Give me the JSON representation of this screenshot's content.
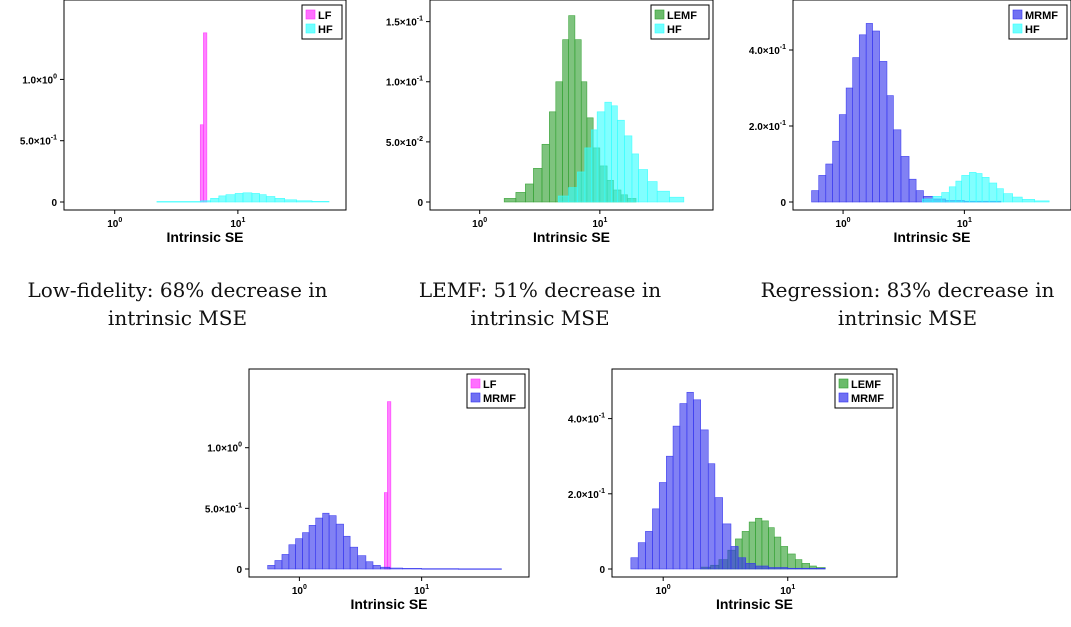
{
  "colors": {
    "LF": "#ff33ff",
    "HF": "#33ffff",
    "LEMF": "#2e9e2e",
    "MRMF": "#3333ee"
  },
  "captions": [
    "Low-fidelity: 68% decrease in intrinsic MSE",
    "LEMF: 51% decrease in intrinsic MSE",
    "Regression: 83% decrease in intrinsic MSE"
  ],
  "chart_data": [
    {
      "type": "histogram",
      "xlabel": "Intrinsic SE",
      "x_scale": "log",
      "xlim": [
        0.45,
        65
      ],
      "x_ticks": [
        {
          "value": 1,
          "base": "10",
          "exp": "0"
        },
        {
          "value": 10,
          "base": "10",
          "exp": "1"
        }
      ],
      "ylim": [
        0,
        1.55
      ],
      "y_ticks": [
        {
          "value": 0,
          "label": "0",
          "exp": ""
        },
        {
          "value": 0.5,
          "label": "5.0×10",
          "exp": "-1"
        },
        {
          "value": 1.0,
          "label": "1.0×10",
          "exp": "0"
        }
      ],
      "legend": "top-right",
      "series": [
        {
          "name": "LF",
          "bins": [
            [
              4.95,
              5.25,
              0.63
            ],
            [
              5.25,
              5.6,
              1.38
            ]
          ]
        },
        {
          "name": "HF",
          "bins": [
            [
              2.2,
              5.0,
              0.004
            ],
            [
              5.0,
              6.0,
              0.01
            ],
            [
              6.0,
              7.0,
              0.03
            ],
            [
              7.0,
              8.0,
              0.05
            ],
            [
              8.0,
              9.5,
              0.06
            ],
            [
              9.5,
              11,
              0.07
            ],
            [
              11,
              13,
              0.075
            ],
            [
              13,
              15,
              0.07
            ],
            [
              15,
              17,
              0.06
            ],
            [
              17,
              20,
              0.045
            ],
            [
              20,
              24,
              0.03
            ],
            [
              24,
              30,
              0.018
            ],
            [
              30,
              40,
              0.01
            ],
            [
              40,
              55,
              0.005
            ]
          ]
        }
      ]
    },
    {
      "type": "histogram",
      "xlabel": "Intrinsic SE",
      "x_scale": "log",
      "xlim": [
        0.45,
        75
      ],
      "x_ticks": [
        {
          "value": 1,
          "base": "10",
          "exp": "0"
        },
        {
          "value": 10,
          "base": "10",
          "exp": "1"
        }
      ],
      "ylim": [
        0,
        0.158
      ],
      "y_ticks": [
        {
          "value": 0,
          "label": "0",
          "exp": ""
        },
        {
          "value": 0.05,
          "label": "5.0×10",
          "exp": "-2"
        },
        {
          "value": 0.1,
          "label": "1.0×10",
          "exp": "-1"
        },
        {
          "value": 0.15,
          "label": "1.5×10",
          "exp": "-1"
        }
      ],
      "legend": "top-right",
      "series": [
        {
          "name": "LEMF",
          "bins": [
            [
              1.6,
              2.0,
              0.003
            ],
            [
              2.0,
              2.4,
              0.008
            ],
            [
              2.4,
              2.8,
              0.015
            ],
            [
              2.8,
              3.3,
              0.028
            ],
            [
              3.3,
              3.8,
              0.048
            ],
            [
              3.8,
              4.3,
              0.075
            ],
            [
              4.3,
              4.9,
              0.1
            ],
            [
              4.9,
              5.5,
              0.135
            ],
            [
              5.5,
              6.2,
              0.155
            ],
            [
              6.2,
              7.0,
              0.135
            ],
            [
              7.0,
              7.8,
              0.1
            ],
            [
              7.8,
              8.8,
              0.07
            ],
            [
              8.8,
              10,
              0.045
            ],
            [
              10,
              11.5,
              0.03
            ],
            [
              11.5,
              13,
              0.018
            ],
            [
              13,
              15,
              0.01
            ],
            [
              15,
              17,
              0.006
            ],
            [
              17,
              20,
              0.003
            ]
          ]
        },
        {
          "name": "HF",
          "bins": [
            [
              4.5,
              5.5,
              0.005
            ],
            [
              5.5,
              6.5,
              0.012
            ],
            [
              6.5,
              7.5,
              0.025
            ],
            [
              7.5,
              8.5,
              0.045
            ],
            [
              8.5,
              9.5,
              0.06
            ],
            [
              9.5,
              11,
              0.075
            ],
            [
              11,
              12.5,
              0.083
            ],
            [
              12.5,
              14,
              0.08
            ],
            [
              14,
              16,
              0.068
            ],
            [
              16,
              18.5,
              0.055
            ],
            [
              18.5,
              21,
              0.04
            ],
            [
              21,
              25,
              0.027
            ],
            [
              25,
              30,
              0.017
            ],
            [
              30,
              38,
              0.009
            ],
            [
              38,
              50,
              0.004
            ]
          ]
        }
      ]
    },
    {
      "type": "histogram",
      "xlabel": "Intrinsic SE",
      "x_scale": "log",
      "xlim": [
        0.45,
        65
      ],
      "x_ticks": [
        {
          "value": 1,
          "base": "10",
          "exp": "0"
        },
        {
          "value": 10,
          "base": "10",
          "exp": "1"
        }
      ],
      "ylim": [
        0,
        0.5
      ],
      "y_ticks": [
        {
          "value": 0,
          "label": "0",
          "exp": ""
        },
        {
          "value": 0.2,
          "label": "2.0×10",
          "exp": "-1"
        },
        {
          "value": 0.4,
          "label": "4.0×10",
          "exp": "-1"
        }
      ],
      "legend": "top-right",
      "series": [
        {
          "name": "MRMF",
          "bins": [
            [
              0.55,
              0.63,
              0.03
            ],
            [
              0.63,
              0.72,
              0.07
            ],
            [
              0.72,
              0.82,
              0.1
            ],
            [
              0.82,
              0.93,
              0.16
            ],
            [
              0.93,
              1.06,
              0.23
            ],
            [
              1.06,
              1.2,
              0.3
            ],
            [
              1.2,
              1.36,
              0.38
            ],
            [
              1.36,
              1.55,
              0.44
            ],
            [
              1.55,
              1.75,
              0.47
            ],
            [
              1.75,
              2.0,
              0.45
            ],
            [
              2.0,
              2.3,
              0.37
            ],
            [
              2.3,
              2.6,
              0.28
            ],
            [
              2.6,
              3.0,
              0.19
            ],
            [
              3.0,
              3.5,
              0.12
            ],
            [
              3.5,
              4.0,
              0.06
            ],
            [
              4.0,
              4.6,
              0.03
            ],
            [
              4.6,
              5.5,
              0.015
            ],
            [
              5.5,
              7,
              0.008
            ],
            [
              7,
              10,
              0.004
            ],
            [
              10,
              20,
              0.002
            ]
          ]
        },
        {
          "name": "HF",
          "bins": [
            [
              4.5,
              5.5,
              0.008
            ],
            [
              5.5,
              6.5,
              0.015
            ],
            [
              6.5,
              7.5,
              0.025
            ],
            [
              7.5,
              8.5,
              0.04
            ],
            [
              8.5,
              9.5,
              0.055
            ],
            [
              9.5,
              11,
              0.07
            ],
            [
              11,
              12.5,
              0.078
            ],
            [
              12.5,
              14,
              0.075
            ],
            [
              14,
              16,
              0.065
            ],
            [
              16,
              18.5,
              0.05
            ],
            [
              18.5,
              21,
              0.035
            ],
            [
              21,
              25,
              0.022
            ],
            [
              25,
              30,
              0.013
            ],
            [
              30,
              38,
              0.007
            ],
            [
              38,
              50,
              0.003
            ]
          ]
        }
      ]
    },
    {
      "type": "histogram",
      "xlabel": "Intrinsic SE",
      "x_scale": "log",
      "xlim": [
        0.45,
        65
      ],
      "x_ticks": [
        {
          "value": 1,
          "base": "10",
          "exp": "0"
        },
        {
          "value": 10,
          "base": "10",
          "exp": "1"
        }
      ],
      "ylim": [
        0,
        1.55
      ],
      "y_ticks": [
        {
          "value": 0,
          "label": "0",
          "exp": ""
        },
        {
          "value": 0.5,
          "label": "5.0×10",
          "exp": "-1"
        },
        {
          "value": 1.0,
          "label": "1.0×10",
          "exp": "0"
        }
      ],
      "legend": "top-right",
      "series": [
        {
          "name": "LF",
          "bins": [
            [
              4.95,
              5.25,
              0.63
            ],
            [
              5.25,
              5.6,
              1.38
            ]
          ]
        },
        {
          "name": "MRMF",
          "bins": [
            [
              0.55,
              0.63,
              0.03
            ],
            [
              0.63,
              0.72,
              0.07
            ],
            [
              0.72,
              0.82,
              0.12
            ],
            [
              0.82,
              0.93,
              0.2
            ],
            [
              0.93,
              1.06,
              0.25
            ],
            [
              1.06,
              1.2,
              0.3
            ],
            [
              1.2,
              1.36,
              0.36
            ],
            [
              1.36,
              1.55,
              0.42
            ],
            [
              1.55,
              1.75,
              0.46
            ],
            [
              1.75,
              2.0,
              0.44
            ],
            [
              2.0,
              2.3,
              0.37
            ],
            [
              2.3,
              2.6,
              0.27
            ],
            [
              2.6,
              3.0,
              0.18
            ],
            [
              3.0,
              3.5,
              0.11
            ],
            [
              3.5,
              4.0,
              0.06
            ],
            [
              4.0,
              4.6,
              0.03
            ],
            [
              4.6,
              5.5,
              0.015
            ],
            [
              5.5,
              7,
              0.008
            ],
            [
              7,
              10,
              0.005
            ],
            [
              10,
              20,
              0.003
            ],
            [
              20,
              45,
              0.002
            ]
          ]
        }
      ]
    },
    {
      "type": "histogram",
      "xlabel": "Intrinsic SE",
      "x_scale": "log",
      "xlim": [
        0.45,
        65
      ],
      "x_ticks": [
        {
          "value": 1,
          "base": "10",
          "exp": "0"
        },
        {
          "value": 10,
          "base": "10",
          "exp": "1"
        }
      ],
      "ylim": [
        0,
        0.5
      ],
      "y_ticks": [
        {
          "value": 0,
          "label": "0",
          "exp": ""
        },
        {
          "value": 0.2,
          "label": "2.0×10",
          "exp": "-1"
        },
        {
          "value": 0.4,
          "label": "4.0×10",
          "exp": "-1"
        }
      ],
      "legend": "top-right",
      "series": [
        {
          "name": "LEMF",
          "bins": [
            [
              2.0,
              2.4,
              0.005
            ],
            [
              2.4,
              2.8,
              0.01
            ],
            [
              2.8,
              3.3,
              0.025
            ],
            [
              3.3,
              3.8,
              0.05
            ],
            [
              3.8,
              4.3,
              0.08
            ],
            [
              4.3,
              4.9,
              0.1
            ],
            [
              4.9,
              5.5,
              0.125
            ],
            [
              5.5,
              6.2,
              0.135
            ],
            [
              6.2,
              7.0,
              0.128
            ],
            [
              7.0,
              7.8,
              0.11
            ],
            [
              7.8,
              8.8,
              0.085
            ],
            [
              8.8,
              10,
              0.06
            ],
            [
              10,
              11.5,
              0.04
            ],
            [
              11.5,
              13,
              0.025
            ],
            [
              13,
              15,
              0.015
            ],
            [
              15,
              17,
              0.008
            ],
            [
              17,
              20,
              0.004
            ]
          ]
        },
        {
          "name": "MRMF",
          "bins": [
            [
              0.55,
              0.63,
              0.03
            ],
            [
              0.63,
              0.72,
              0.07
            ],
            [
              0.72,
              0.82,
              0.1
            ],
            [
              0.82,
              0.93,
              0.16
            ],
            [
              0.93,
              1.06,
              0.23
            ],
            [
              1.06,
              1.2,
              0.3
            ],
            [
              1.2,
              1.36,
              0.38
            ],
            [
              1.36,
              1.55,
              0.44
            ],
            [
              1.55,
              1.75,
              0.47
            ],
            [
              1.75,
              2.0,
              0.45
            ],
            [
              2.0,
              2.3,
              0.37
            ],
            [
              2.3,
              2.6,
              0.28
            ],
            [
              2.6,
              3.0,
              0.19
            ],
            [
              3.0,
              3.5,
              0.12
            ],
            [
              3.5,
              4.0,
              0.06
            ],
            [
              4.0,
              4.6,
              0.03
            ],
            [
              4.6,
              5.5,
              0.015
            ],
            [
              5.5,
              7,
              0.008
            ],
            [
              7,
              10,
              0.004
            ],
            [
              10,
              20,
              0.002
            ]
          ]
        }
      ]
    }
  ]
}
